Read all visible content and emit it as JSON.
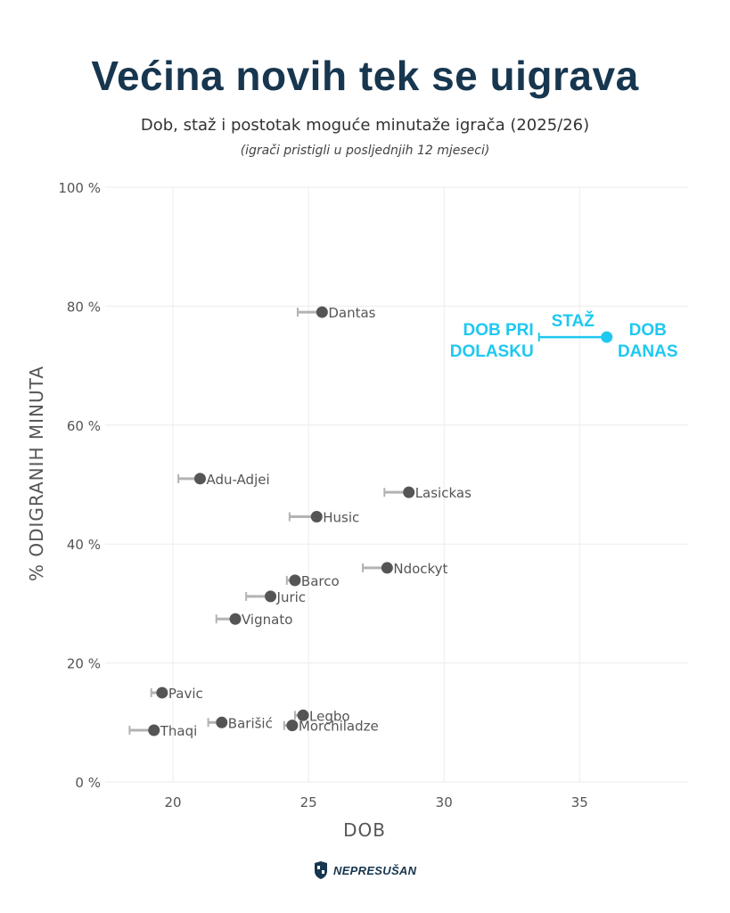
{
  "title": "Većina novih tek se uigrava",
  "subtitle": "Dob, staž i postotak moguće minutaže igrača (2025/26)",
  "subtitle_note": "(igrači pristigli u posljednjih 12 mjeseci)",
  "logo_text": "NEPRESUŠAN",
  "colors": {
    "title": "#17364f",
    "point": "#555555",
    "bar": "#b3b3b3",
    "label": "#555555",
    "legend": "#1ec8f0",
    "grid": "#ececec"
  },
  "chart_data": {
    "type": "scatter",
    "xlabel": "DOB",
    "ylabel": "% ODIGRANIH MINUTA",
    "xlim": [
      17.5,
      39
    ],
    "ylim": [
      0,
      100
    ],
    "x_ticks": [
      20,
      25,
      30,
      35
    ],
    "y_ticks": [
      0,
      20,
      40,
      60,
      80,
      100
    ],
    "y_tick_labels": [
      "0 %",
      "20 %",
      "40 %",
      "60 %",
      "80 %",
      "100 %"
    ],
    "grid": true,
    "points": [
      {
        "name": "Dantas",
        "age_at_arrival": 24.6,
        "age_now": 25.5,
        "pct": 79.0
      },
      {
        "name": "Adu-Adjei",
        "age_at_arrival": 20.2,
        "age_now": 21.0,
        "pct": 51.0
      },
      {
        "name": "Lasickas",
        "age_at_arrival": 27.8,
        "age_now": 28.7,
        "pct": 48.7
      },
      {
        "name": "Husic",
        "age_at_arrival": 24.3,
        "age_now": 25.3,
        "pct": 44.6
      },
      {
        "name": "Ndockyt",
        "age_at_arrival": 27.0,
        "age_now": 27.9,
        "pct": 36.0
      },
      {
        "name": "Barco",
        "age_at_arrival": 24.2,
        "age_now": 24.5,
        "pct": 33.9
      },
      {
        "name": "Juric",
        "age_at_arrival": 22.7,
        "age_now": 23.6,
        "pct": 31.2
      },
      {
        "name": "Vignato",
        "age_at_arrival": 21.6,
        "age_now": 22.3,
        "pct": 27.4
      },
      {
        "name": "Pavic",
        "age_at_arrival": 19.2,
        "age_now": 19.6,
        "pct": 15.0
      },
      {
        "name": "Legbo",
        "age_at_arrival": 24.5,
        "age_now": 24.8,
        "pct": 11.2
      },
      {
        "name": "Barišić",
        "age_at_arrival": 21.3,
        "age_now": 21.8,
        "pct": 10.0
      },
      {
        "name": "Morchiladze",
        "age_at_arrival": 24.1,
        "age_now": 24.4,
        "pct": 9.5
      },
      {
        "name": "Thaqi",
        "age_at_arrival": 18.4,
        "age_now": 19.3,
        "pct": 8.7
      }
    ],
    "legend": {
      "bar_label": "STAŽ",
      "start_label_line1": "DOB PRI",
      "start_label_line2": "DOLASKU",
      "end_label_line1": "DOB",
      "end_label_line2": "DANAS",
      "age_at_arrival": 33.5,
      "age_now": 36.0,
      "pct": 74.8
    }
  }
}
